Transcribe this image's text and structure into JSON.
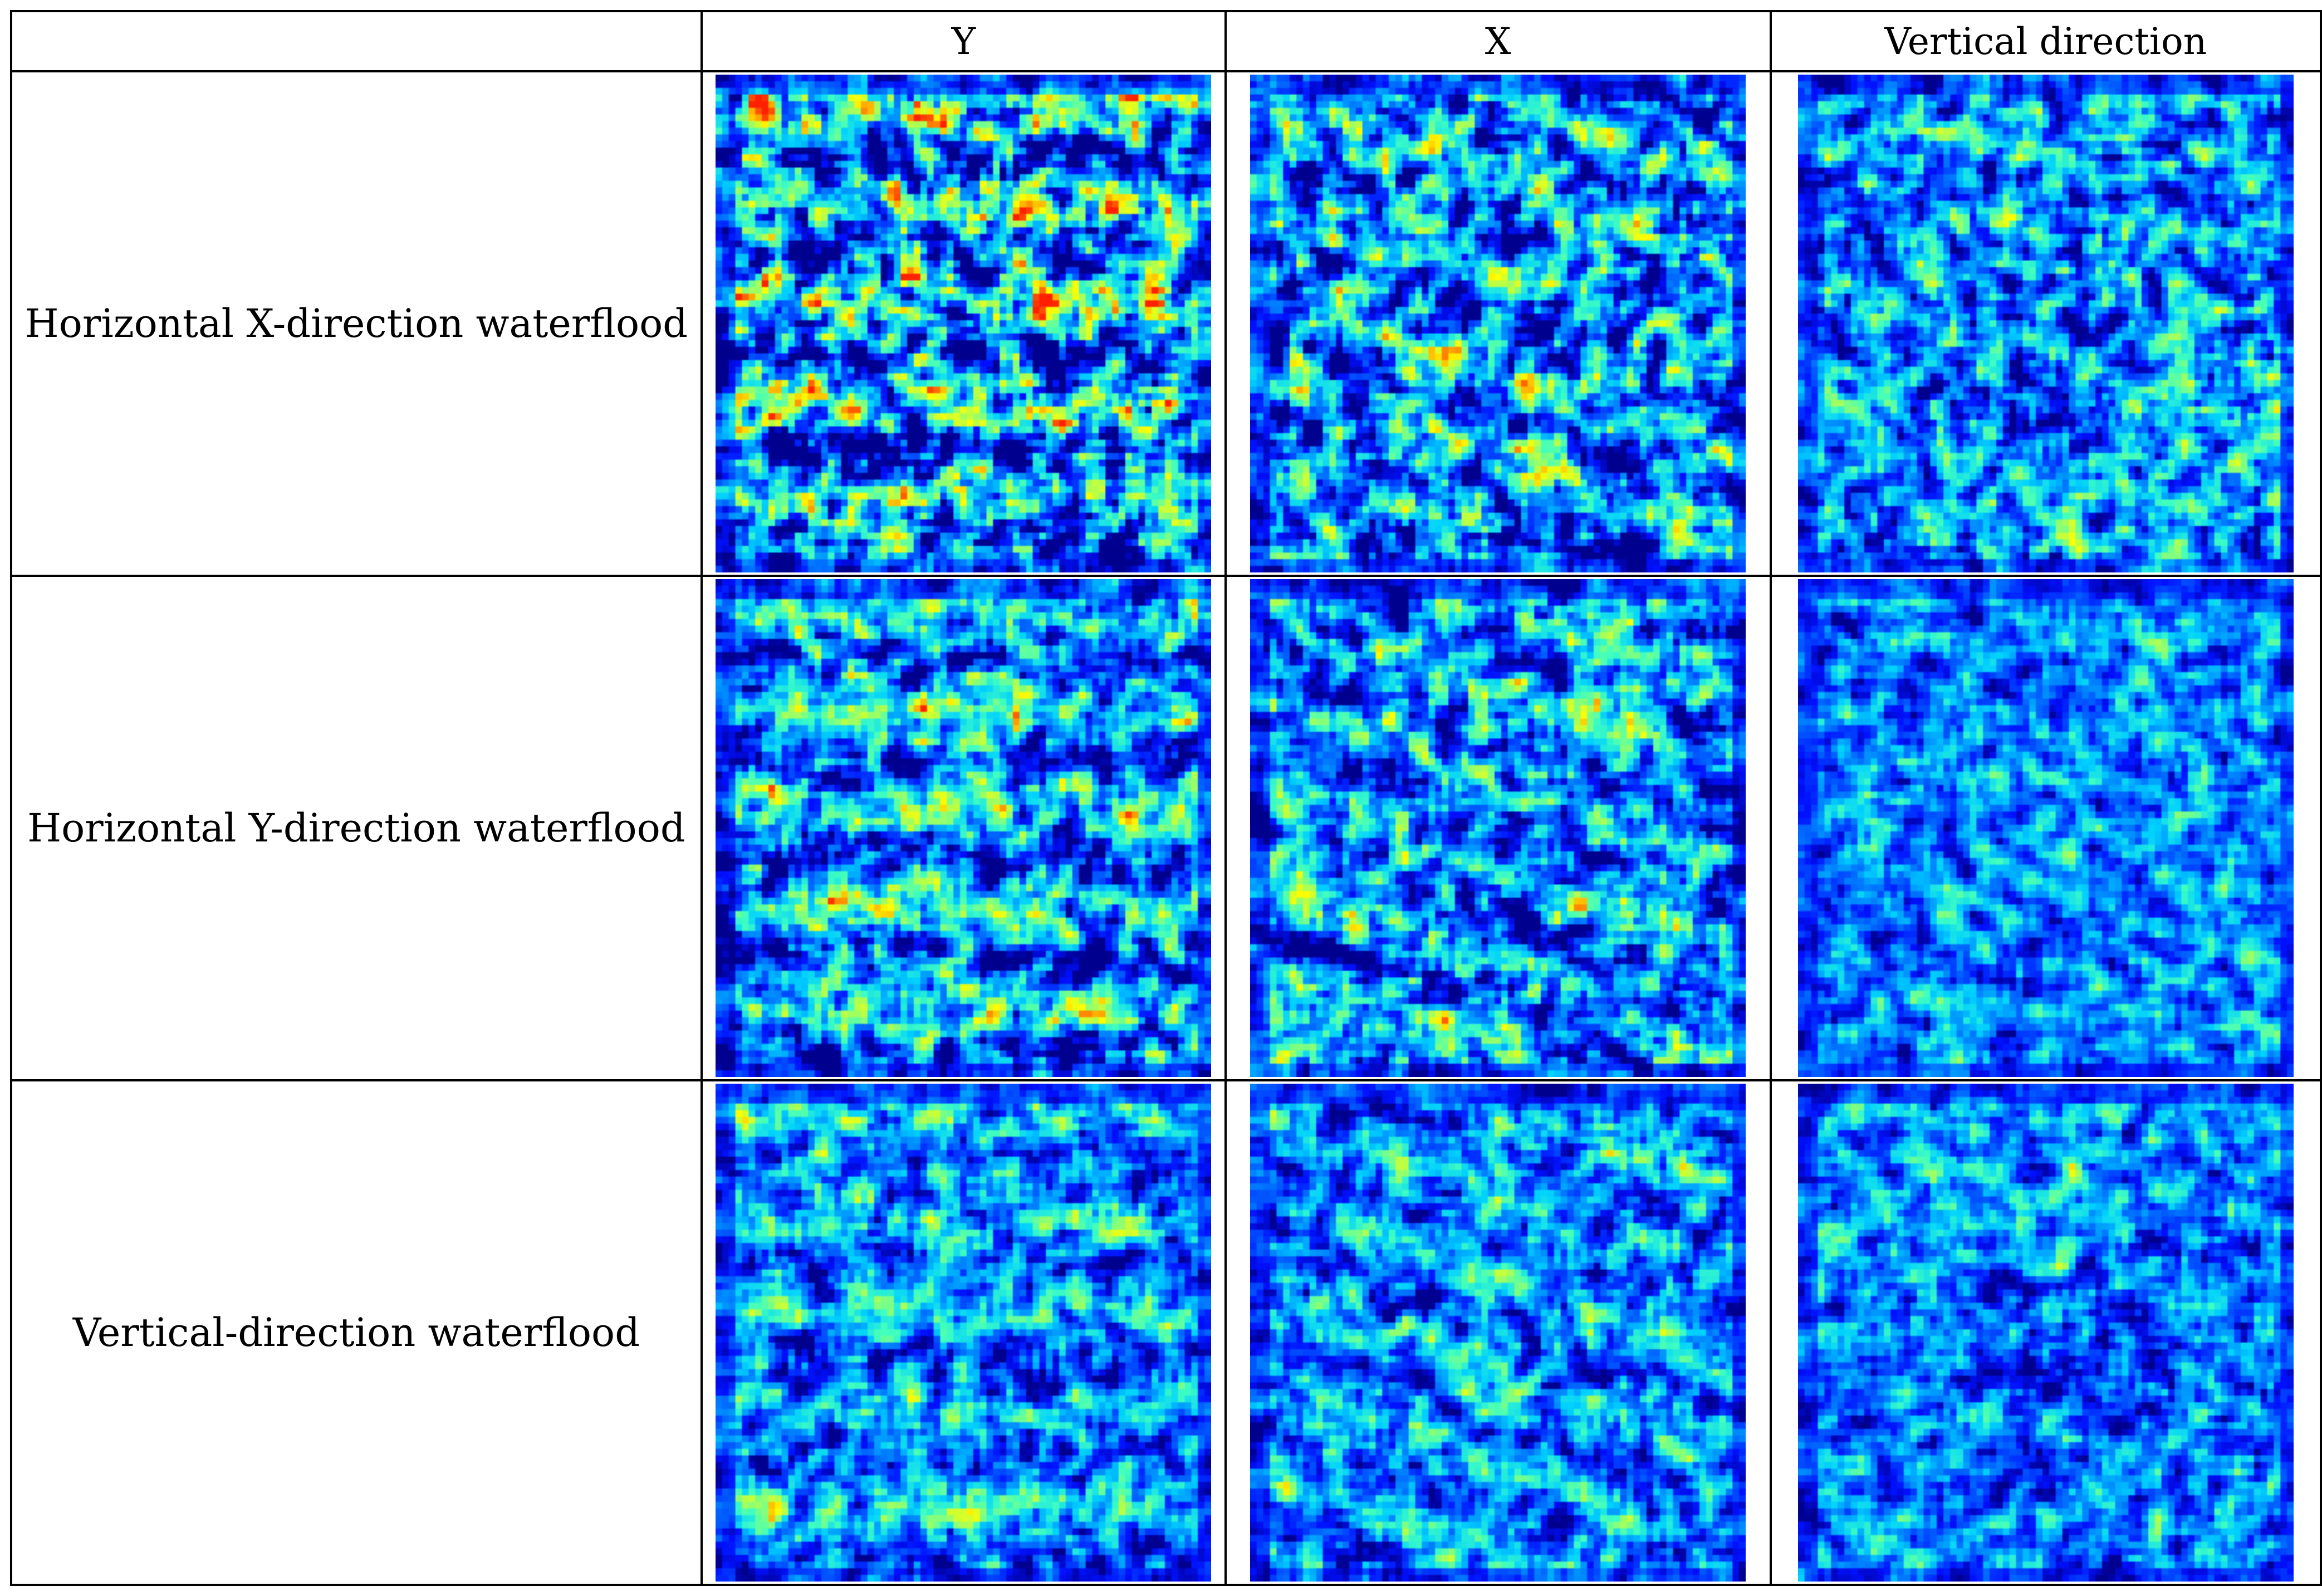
{
  "table": {
    "corner": "",
    "columns": [
      "Y",
      "X",
      "Vertical direction"
    ],
    "rows": [
      {
        "label": "Horizontal X-direction waterflood",
        "cells": [
          {
            "column": "Y",
            "pattern": "horizontal-bands",
            "seed": 11,
            "intensity": 0.72
          },
          {
            "column": "X",
            "pattern": "diagonal-bands",
            "seed": 23,
            "intensity": 0.6
          },
          {
            "column": "Vertical direction",
            "pattern": "isotropic",
            "seed": 37,
            "intensity": 0.52
          }
        ]
      },
      {
        "label": "Horizontal Y-direction waterflood",
        "cells": [
          {
            "column": "Y",
            "pattern": "horizontal-bands",
            "seed": 41,
            "intensity": 0.55
          },
          {
            "column": "X",
            "pattern": "diagonal-bands",
            "seed": 53,
            "intensity": 0.55
          },
          {
            "column": "Vertical direction",
            "pattern": "isotropic",
            "seed": 67,
            "intensity": 0.38
          }
        ]
      },
      {
        "label": "Vertical-direction waterflood",
        "cells": [
          {
            "column": "Y",
            "pattern": "horizontal-bands",
            "seed": 71,
            "intensity": 0.45
          },
          {
            "column": "X",
            "pattern": "diagonal-bands",
            "seed": 83,
            "intensity": 0.45
          },
          {
            "column": "Vertical direction",
            "pattern": "isotropic-dark-center",
            "seed": 97,
            "intensity": 0.4
          }
        ]
      }
    ]
  },
  "colors": {
    "border": "#000000",
    "text": "#000000",
    "colormap": [
      "#00008f",
      "#0010ff",
      "#0070ff",
      "#00d0ff",
      "#40ffbf",
      "#a0ff60",
      "#ffff00",
      "#ff9000",
      "#ff2000"
    ]
  }
}
